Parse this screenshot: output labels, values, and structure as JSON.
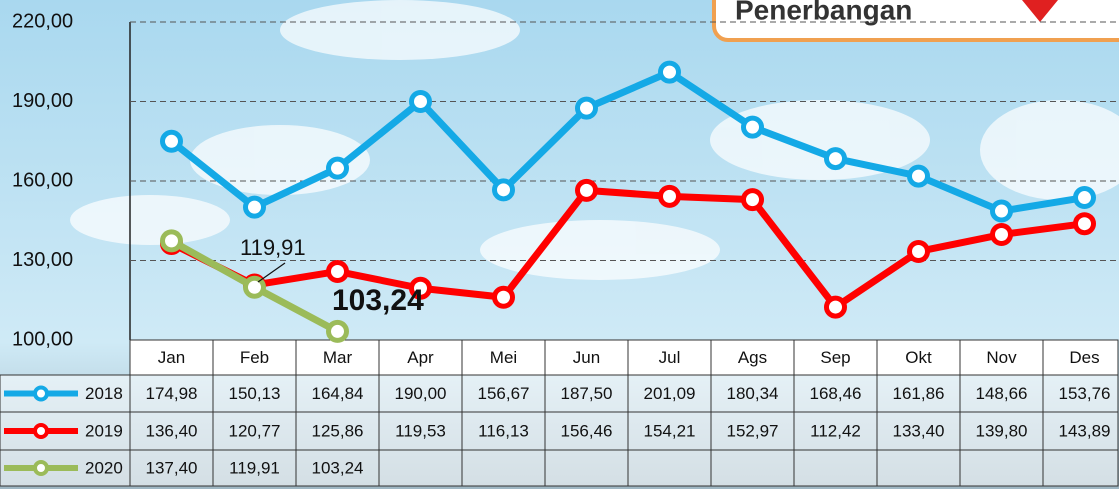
{
  "chart_data": {
    "type": "line",
    "badge": "Penerbangan",
    "categories": [
      "Jan",
      "Feb",
      "Mar",
      "Apr",
      "Mei",
      "Jun",
      "Jul",
      "Ags",
      "Sep",
      "Okt",
      "Nov",
      "Des"
    ],
    "series": [
      {
        "name": "2018",
        "color": "#14a9e6",
        "values": [
          174.98,
          150.13,
          164.84,
          190.0,
          156.67,
          187.5,
          201.09,
          180.34,
          168.46,
          161.86,
          148.66,
          153.76
        ],
        "value_labels": [
          "174,98",
          "150,13",
          "164,84",
          "190,00",
          "156,67",
          "187,50",
          "201,09",
          "180,34",
          "168,46",
          "161,86",
          "148,66",
          "153,76"
        ]
      },
      {
        "name": "2019",
        "color": "#ff0000",
        "values": [
          136.4,
          120.77,
          125.86,
          119.53,
          116.13,
          156.46,
          154.21,
          152.97,
          112.42,
          133.4,
          139.8,
          143.89
        ],
        "value_labels": [
          "136,40",
          "120,77",
          "125,86",
          "119,53",
          "116,13",
          "156,46",
          "154,21",
          "152,97",
          "112,42",
          "133,40",
          "139,80",
          "143,89"
        ]
      },
      {
        "name": "2020",
        "color": "#9bbb59",
        "values": [
          137.4,
          119.91,
          103.24,
          null,
          null,
          null,
          null,
          null,
          null,
          null,
          null,
          null
        ],
        "value_labels": [
          "137,40",
          "119,91",
          "103,24",
          null,
          null,
          null,
          null,
          null,
          null,
          null,
          null,
          null
        ]
      }
    ],
    "annotations": [
      {
        "text": "119,91"
      },
      {
        "text": "103,24"
      }
    ],
    "ylim": [
      100,
      220
    ],
    "yticks": [
      {
        "value": 100,
        "label": "100,00"
      },
      {
        "value": 130,
        "label": "130,00"
      },
      {
        "value": 160,
        "label": "160,00"
      },
      {
        "value": 190,
        "label": "190,00"
      },
      {
        "value": 220,
        "label": "220,00"
      }
    ],
    "grid": true
  }
}
